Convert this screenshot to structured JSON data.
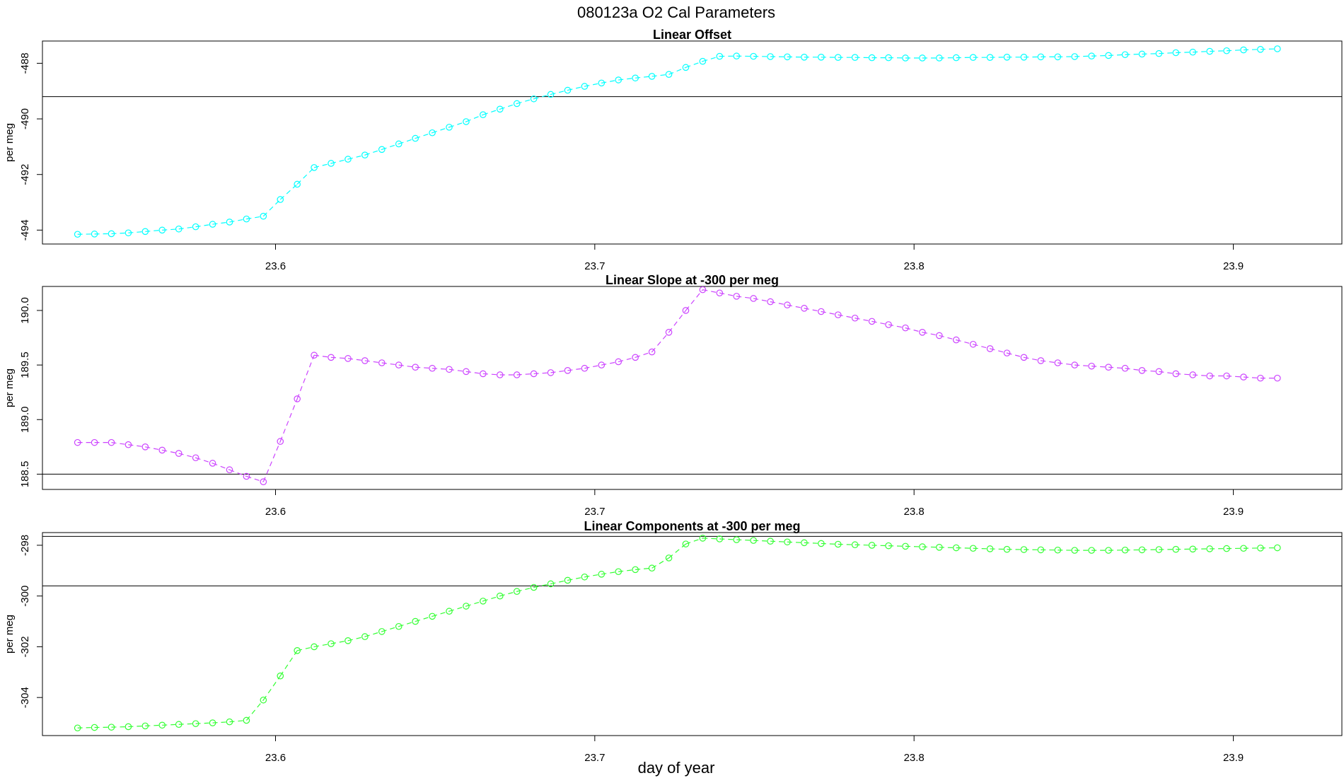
{
  "title": "080123a   O2 Cal Parameters",
  "xlabel": "day of year",
  "chart_data": [
    {
      "type": "line",
      "title": "Linear Offset",
      "ylabel": "per meg",
      "color": "#00ffff",
      "xlim": [
        23.527,
        23.934
      ],
      "ylim": [
        -494.5,
        -487.2
      ],
      "xticks": [
        23.6,
        23.7,
        23.8,
        23.9
      ],
      "xtick_labels": [
        "23.6",
        "23.7",
        "23.8",
        "23.9"
      ],
      "yticks": [
        -494,
        -492,
        -490,
        -488
      ],
      "ytick_labels": [
        "-494",
        "-492",
        "-490",
        "-488"
      ],
      "hlines": [
        -489.2
      ],
      "solid_x_range": [
        23.59,
        23.61
      ],
      "x": [
        23.538,
        23.5433,
        23.5486,
        23.5539,
        23.5592,
        23.5645,
        23.5697,
        23.575,
        23.5803,
        23.5856,
        23.5909,
        23.5962,
        23.6015,
        23.6068,
        23.6121,
        23.6174,
        23.6227,
        23.628,
        23.6333,
        23.6386,
        23.6438,
        23.6491,
        23.6544,
        23.6597,
        23.665,
        23.6703,
        23.6756,
        23.6809,
        23.6862,
        23.6915,
        23.6968,
        23.7021,
        23.7074,
        23.7127,
        23.7179,
        23.7232,
        23.7285,
        23.7338,
        23.7391,
        23.7444,
        23.7497,
        23.755,
        23.7603,
        23.7656,
        23.7709,
        23.7762,
        23.7815,
        23.7868,
        23.792,
        23.7973,
        23.8026,
        23.8079,
        23.8132,
        23.8185,
        23.8238,
        23.8291,
        23.8344,
        23.8397,
        23.845,
        23.8503,
        23.8556,
        23.8609,
        23.8661,
        23.8714,
        23.8767,
        23.882,
        23.8873,
        23.8926,
        23.8979,
        23.9032,
        23.9085,
        23.9138
      ],
      "y": [
        -494.15,
        -494.14,
        -494.13,
        -494.1,
        -494.05,
        -494.0,
        -493.96,
        -493.88,
        -493.79,
        -493.71,
        -493.6,
        -493.5,
        -492.9,
        -492.35,
        -491.75,
        -491.6,
        -491.45,
        -491.3,
        -491.1,
        -490.9,
        -490.7,
        -490.5,
        -490.3,
        -490.1,
        -489.85,
        -489.65,
        -489.45,
        -489.28,
        -489.12,
        -488.97,
        -488.83,
        -488.71,
        -488.6,
        -488.53,
        -488.47,
        -488.4,
        -488.15,
        -487.93,
        -487.75,
        -487.74,
        -487.75,
        -487.76,
        -487.77,
        -487.78,
        -487.78,
        -487.79,
        -487.79,
        -487.8,
        -487.8,
        -487.81,
        -487.81,
        -487.81,
        -487.8,
        -487.79,
        -487.79,
        -487.78,
        -487.78,
        -487.77,
        -487.77,
        -487.76,
        -487.74,
        -487.72,
        -487.69,
        -487.67,
        -487.65,
        -487.62,
        -487.6,
        -487.57,
        -487.55,
        -487.52,
        -487.5,
        -487.48
      ]
    },
    {
      "type": "line",
      "title": "Linear Slope at -300 per meg",
      "ylabel": "per meg",
      "color": "#cc44ff",
      "xlim": [
        23.527,
        23.934
      ],
      "ylim": [
        188.36,
        190.22
      ],
      "xticks": [
        23.6,
        23.7,
        23.8,
        23.9
      ],
      "xtick_labels": [
        "23.6",
        "23.7",
        "23.8",
        "23.9"
      ],
      "yticks": [
        188.5,
        189.0,
        189.5,
        190.0
      ],
      "ytick_labels": [
        "188.5",
        "189.0",
        "189.5",
        "190.0"
      ],
      "hlines": [
        188.5
      ],
      "solid_x_range": [
        23.59,
        23.61
      ],
      "x": [
        23.538,
        23.5433,
        23.5486,
        23.5539,
        23.5592,
        23.5645,
        23.5697,
        23.575,
        23.5803,
        23.5856,
        23.5909,
        23.5962,
        23.6015,
        23.6068,
        23.6121,
        23.6174,
        23.6227,
        23.628,
        23.6333,
        23.6386,
        23.6438,
        23.6491,
        23.6544,
        23.6597,
        23.665,
        23.6703,
        23.6756,
        23.6809,
        23.6862,
        23.6915,
        23.6968,
        23.7021,
        23.7074,
        23.7127,
        23.7179,
        23.7232,
        23.7285,
        23.7338,
        23.7391,
        23.7444,
        23.7497,
        23.755,
        23.7603,
        23.7656,
        23.7709,
        23.7762,
        23.7815,
        23.7868,
        23.792,
        23.7973,
        23.8026,
        23.8079,
        23.8132,
        23.8185,
        23.8238,
        23.8291,
        23.8344,
        23.8397,
        23.845,
        23.8503,
        23.8556,
        23.8609,
        23.8661,
        23.8714,
        23.8767,
        23.882,
        23.8873,
        23.8926,
        23.8979,
        23.9032,
        23.9085,
        23.9138
      ],
      "y": [
        188.79,
        188.79,
        188.79,
        188.77,
        188.75,
        188.72,
        188.69,
        188.65,
        188.6,
        188.54,
        188.48,
        188.43,
        188.8,
        189.19,
        189.59,
        189.57,
        189.56,
        189.54,
        189.52,
        189.5,
        189.48,
        189.47,
        189.46,
        189.44,
        189.42,
        189.41,
        189.41,
        189.42,
        189.43,
        189.45,
        189.47,
        189.5,
        189.53,
        189.57,
        189.62,
        189.8,
        190.0,
        190.19,
        190.16,
        190.13,
        190.11,
        190.08,
        190.05,
        190.02,
        189.99,
        189.96,
        189.93,
        189.9,
        189.87,
        189.84,
        189.8,
        189.77,
        189.73,
        189.69,
        189.65,
        189.61,
        189.57,
        189.54,
        189.52,
        189.5,
        189.49,
        189.48,
        189.47,
        189.45,
        189.44,
        189.42,
        189.41,
        189.4,
        189.4,
        189.39,
        189.38,
        189.38
      ]
    },
    {
      "type": "line",
      "title": "Linear Components at -300 per meg",
      "ylabel": "per meg",
      "color": "#33ff33",
      "xlim": [
        23.527,
        23.934
      ],
      "ylim": [
        -305.5,
        -297.5
      ],
      "xticks": [
        23.6,
        23.7,
        23.8,
        23.9
      ],
      "xtick_labels": [
        "23.6",
        "23.7",
        "23.8",
        "23.9"
      ],
      "yticks": [
        -304,
        -302,
        -300,
        -298
      ],
      "ytick_labels": [
        "-304",
        "-302",
        "-300",
        "-298"
      ],
      "hlines": [
        -297.65,
        -299.6
      ],
      "solid_x_range": [
        23.59,
        23.61
      ],
      "x": [
        23.538,
        23.5433,
        23.5486,
        23.5539,
        23.5592,
        23.5645,
        23.5697,
        23.575,
        23.5803,
        23.5856,
        23.5909,
        23.5962,
        23.6015,
        23.6068,
        23.6121,
        23.6174,
        23.6227,
        23.628,
        23.6333,
        23.6386,
        23.6438,
        23.6491,
        23.6544,
        23.6597,
        23.665,
        23.6703,
        23.6756,
        23.6809,
        23.6862,
        23.6915,
        23.6968,
        23.7021,
        23.7074,
        23.7127,
        23.7179,
        23.7232,
        23.7285,
        23.7338,
        23.7391,
        23.7444,
        23.7497,
        23.755,
        23.7603,
        23.7656,
        23.7709,
        23.7762,
        23.7815,
        23.7868,
        23.792,
        23.7973,
        23.8026,
        23.8079,
        23.8132,
        23.8185,
        23.8238,
        23.8291,
        23.8344,
        23.8397,
        23.845,
        23.8503,
        23.8556,
        23.8609,
        23.8661,
        23.8714,
        23.8767,
        23.882,
        23.8873,
        23.8926,
        23.8979,
        23.9032,
        23.9085,
        23.9138
      ],
      "y": [
        -305.2,
        -305.18,
        -305.17,
        -305.15,
        -305.12,
        -305.09,
        -305.06,
        -305.03,
        -305.0,
        -304.96,
        -304.9,
        -304.1,
        -303.15,
        -302.15,
        -302.0,
        -301.88,
        -301.76,
        -301.6,
        -301.4,
        -301.2,
        -301.0,
        -300.8,
        -300.6,
        -300.4,
        -300.2,
        -300.0,
        -299.82,
        -299.66,
        -299.52,
        -299.38,
        -299.25,
        -299.14,
        -299.04,
        -298.96,
        -298.9,
        -298.5,
        -297.95,
        -297.72,
        -297.75,
        -297.78,
        -297.81,
        -297.84,
        -297.87,
        -297.9,
        -297.93,
        -297.96,
        -297.98,
        -298.0,
        -298.02,
        -298.04,
        -298.06,
        -298.08,
        -298.1,
        -298.12,
        -298.14,
        -298.16,
        -298.17,
        -298.18,
        -298.19,
        -298.2,
        -298.2,
        -298.2,
        -298.19,
        -298.18,
        -298.17,
        -298.16,
        -298.15,
        -298.14,
        -298.13,
        -298.12,
        -298.11,
        -298.1
      ]
    }
  ]
}
